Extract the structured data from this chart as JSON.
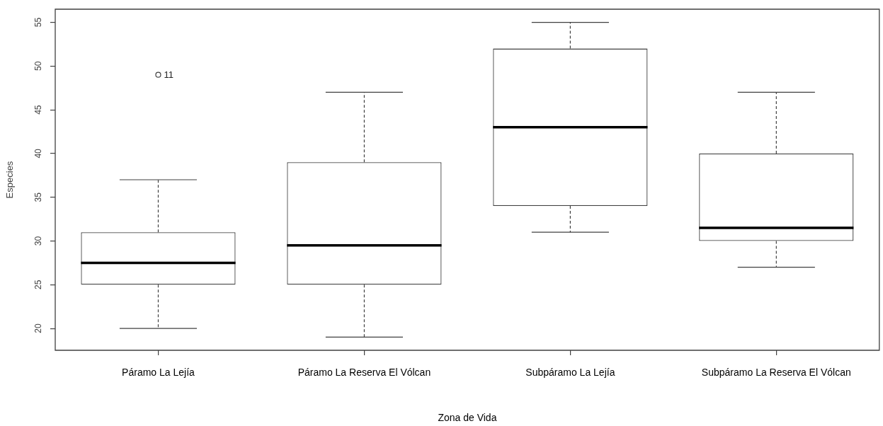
{
  "chart_data": {
    "type": "box",
    "xlabel": "Zona de Vida",
    "ylabel": "Especies",
    "categories": [
      "Páramo La Lejía",
      "Páramo La Reserva El Vólcan",
      "Subpáramo La Lejía",
      "Subpáramo La Reserva El Vólcan"
    ],
    "boxes": [
      {
        "low": 20,
        "q1": 25,
        "median": 27.5,
        "q3": 31,
        "high": 37,
        "outliers": [
          49
        ]
      },
      {
        "low": 19,
        "q1": 25,
        "median": 29.5,
        "q3": 39,
        "high": 47
      },
      {
        "low": 31,
        "q1": 34,
        "median": 43,
        "q3": 52,
        "high": 55
      },
      {
        "low": 27,
        "q1": 30,
        "median": 31.5,
        "q3": 40,
        "high": 47
      }
    ],
    "color": "#404040",
    "marker": "circle",
    "legend": false,
    "ylim": [
      17.5,
      56.5
    ],
    "yticks": [
      20,
      25,
      30,
      35,
      40,
      45,
      50,
      55
    ],
    "annotations": [
      "11"
    ]
  }
}
